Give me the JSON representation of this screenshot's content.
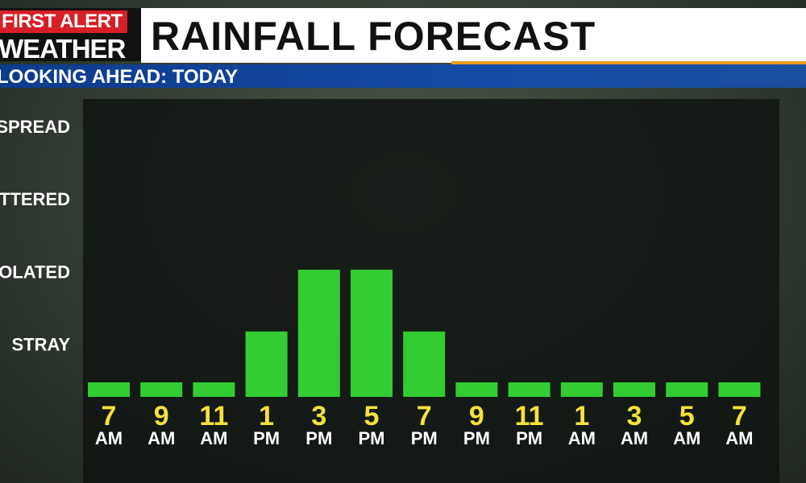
{
  "header": {
    "logo_top": "FIRST ALERT",
    "logo_bottom": "WEATHER",
    "title": "RAINFALL FORECAST",
    "subtitle": "LOOKING AHEAD: TODAY"
  },
  "chart_data": {
    "type": "bar",
    "categories": [
      "7 AM",
      "9 AM",
      "11 AM",
      "1 PM",
      "3 PM",
      "5 PM",
      "7 PM",
      "9 PM",
      "11 PM",
      "1 AM",
      "3 AM",
      "5 AM",
      "7 AM"
    ],
    "values": [
      0.5,
      0.5,
      0.5,
      1.2,
      2.05,
      2.05,
      1.2,
      0.5,
      0.5,
      0.5,
      0.5,
      0.5,
      0.5
    ],
    "color": "#33cc33",
    "ylim": [
      0.3,
      4.4
    ],
    "yticks": [
      {
        "value": 1,
        "label": "STRAY"
      },
      {
        "value": 2,
        "label": "OLATED"
      },
      {
        "value": 3,
        "label": "TTERED"
      },
      {
        "value": 4,
        "label": "SPREAD"
      }
    ]
  }
}
